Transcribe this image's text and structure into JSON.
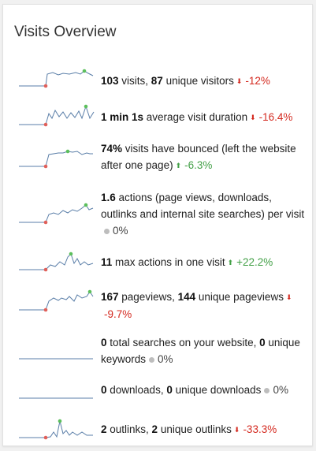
{
  "widget": {
    "title": "Visits Overview"
  },
  "metrics": [
    {
      "parts": [
        {
          "b": "103"
        },
        {
          "t": " visits, "
        },
        {
          "b": "87"
        },
        {
          "t": " unique visitors"
        }
      ],
      "trend": "down",
      "change": "-12%"
    },
    {
      "parts": [
        {
          "b": "1 min 1s"
        },
        {
          "t": " average visit duration"
        }
      ],
      "trend": "down",
      "change": "-16.4%"
    },
    {
      "parts": [
        {
          "b": "74%"
        },
        {
          "t": " visits have bounced (left the website after one page)"
        }
      ],
      "trend": "up",
      "change": "-6.3%"
    },
    {
      "parts": [
        {
          "b": "1.6"
        },
        {
          "t": " actions (page views, downloads, outlinks and internal site searches) per visit"
        }
      ],
      "trend": "neutral",
      "change": "0%"
    },
    {
      "parts": [
        {
          "b": "11"
        },
        {
          "t": " max actions in one visit"
        }
      ],
      "trend": "up",
      "change": "+22.2%"
    },
    {
      "parts": [
        {
          "b": "167"
        },
        {
          "t": " pageviews, "
        },
        {
          "b": "144"
        },
        {
          "t": " unique pageviews"
        }
      ],
      "trend": "down",
      "change": "-9.7%"
    },
    {
      "parts": [
        {
          "b": "0"
        },
        {
          "t": " total searches on your website, "
        },
        {
          "b": "0"
        },
        {
          "t": " unique keywords"
        }
      ],
      "trend": "neutral",
      "change": "0%"
    },
    {
      "parts": [
        {
          "b": "0"
        },
        {
          "t": " downloads, "
        },
        {
          "b": "0"
        },
        {
          "t": " unique downloads"
        }
      ],
      "trend": "neutral",
      "change": "0%"
    },
    {
      "parts": [
        {
          "b": "2"
        },
        {
          "t": " outlinks, "
        },
        {
          "b": "2"
        },
        {
          "t": " unique outlinks"
        }
      ],
      "trend": "down",
      "change": "-33.3%"
    }
  ],
  "colors": {
    "negative": "#d4291f",
    "positive": "#43a047",
    "neutral": "#bdbdbd",
    "sparkline": "#5a7ea8",
    "spark_min": "#e0605a",
    "spark_max": "#5cbf5c"
  }
}
